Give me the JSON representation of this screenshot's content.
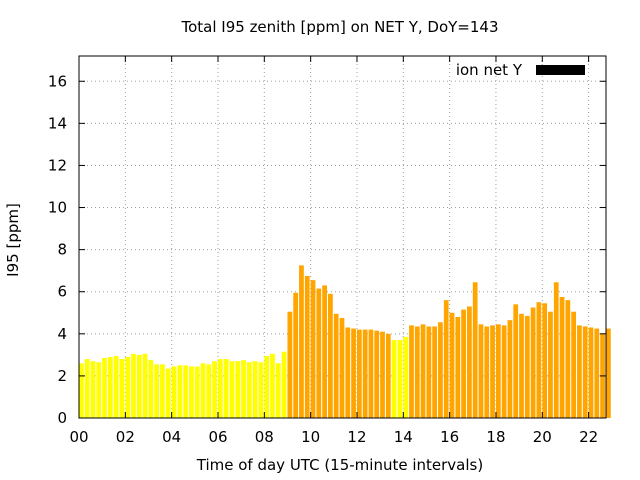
{
  "chart_data": {
    "type": "bar",
    "title": "Total I95 zenith [ppm] on NET Y, DoY=143",
    "xlabel": "Time of day UTC (15-minute intervals)",
    "ylabel": "I95 [ppm]",
    "ylim": [
      0,
      17.2
    ],
    "xlim": [
      0,
      22.75
    ],
    "yticks": [
      0,
      2,
      4,
      6,
      8,
      10,
      12,
      14,
      16
    ],
    "xticks": [
      "00",
      "02",
      "04",
      "06",
      "08",
      "10",
      "12",
      "14",
      "16",
      "18",
      "20",
      "22"
    ],
    "grid": true,
    "legend": {
      "label": "ion net Y",
      "position": "top-right",
      "color": "#000000"
    },
    "colors": {
      "low": "#ffff00",
      "high": "#ffa500"
    },
    "bar_step_hours": 0.25,
    "series": [
      {
        "values": [
          2.6,
          2.8,
          2.7,
          2.65,
          2.85,
          2.9,
          2.95,
          2.8,
          2.9,
          3.05,
          3.0,
          3.05,
          2.75,
          2.55,
          2.55,
          2.35,
          2.45,
          2.5,
          2.5,
          2.45,
          2.45,
          2.6,
          2.55,
          2.7,
          2.8,
          2.8,
          2.7,
          2.7,
          2.75,
          2.65,
          2.7,
          2.65,
          2.95,
          3.05,
          2.6,
          3.15,
          5.05,
          5.95,
          7.25,
          6.75,
          6.55,
          6.15,
          6.3,
          5.9,
          4.95,
          4.75,
          4.3,
          4.25,
          4.2,
          4.2,
          4.2,
          4.15,
          4.1,
          4.0,
          3.7,
          3.7,
          3.85,
          4.4,
          4.35,
          4.45,
          4.35,
          4.35,
          4.55,
          5.6,
          5.0,
          4.8,
          5.15,
          5.3,
          6.45,
          4.45,
          4.35,
          4.4,
          4.45,
          4.4,
          4.65,
          5.4,
          4.95,
          4.85,
          5.25,
          5.5,
          5.45,
          5.05,
          6.45,
          5.75,
          5.6,
          5.05,
          4.4,
          4.35,
          4.3,
          4.25,
          4.0,
          4.25
        ],
        "level": [
          "low",
          "low",
          "low",
          "low",
          "low",
          "low",
          "low",
          "low",
          "low",
          "low",
          "low",
          "low",
          "low",
          "low",
          "low",
          "low",
          "low",
          "low",
          "low",
          "low",
          "low",
          "low",
          "low",
          "low",
          "low",
          "low",
          "low",
          "low",
          "low",
          "low",
          "low",
          "low",
          "low",
          "low",
          "low",
          "low",
          "high",
          "high",
          "high",
          "high",
          "high",
          "high",
          "high",
          "high",
          "high",
          "high",
          "high",
          "high",
          "high",
          "high",
          "high",
          "high",
          "high",
          "high",
          "low",
          "low",
          "low",
          "high",
          "high",
          "high",
          "high",
          "high",
          "high",
          "high",
          "high",
          "high",
          "high",
          "high",
          "high",
          "high",
          "high",
          "high",
          "high",
          "high",
          "high",
          "high",
          "high",
          "high",
          "high",
          "high",
          "high",
          "high",
          "high",
          "high",
          "high",
          "high",
          "high",
          "high",
          "high",
          "high",
          "high",
          "high"
        ]
      }
    ]
  }
}
